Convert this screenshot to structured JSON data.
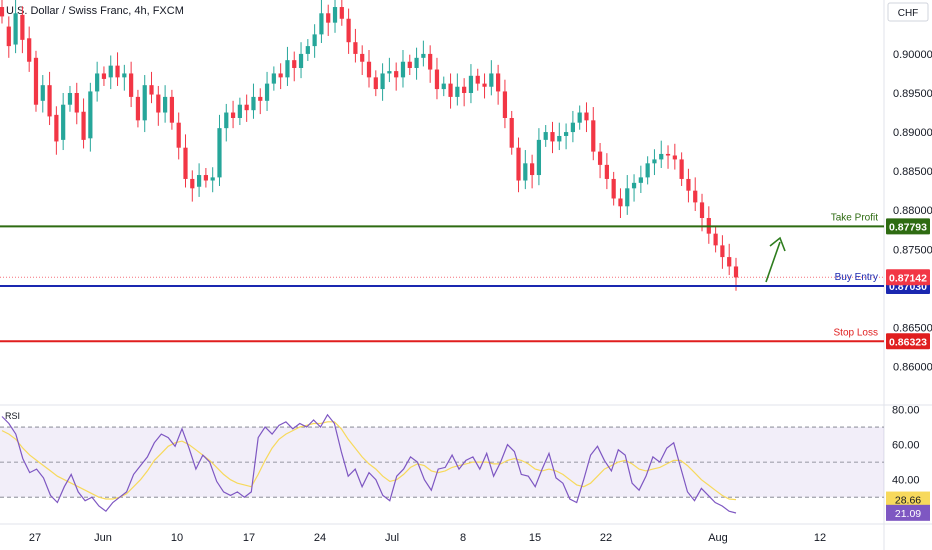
{
  "header": {
    "symbol_title": "U.S. Dollar / Swiss Franc, 4h, FXCM",
    "currency": "CHF"
  },
  "chart_data": {
    "type": "candlestick",
    "price_axis": {
      "ticks": [
        0.9,
        0.895,
        0.89,
        0.885,
        0.88,
        0.875,
        0.865,
        0.86
      ],
      "tick_labels": [
        "0.90000",
        "0.89500",
        "0.89000",
        "0.88500",
        "0.88000",
        "0.87500",
        "0.86500",
        "0.86000"
      ],
      "range": [
        0.8552,
        0.9069
      ]
    },
    "time_axis": {
      "labels": [
        "27",
        "Jun",
        "10",
        "17",
        "24",
        "Jul",
        "8",
        "15",
        "22",
        "Aug",
        "12"
      ]
    },
    "levels": [
      {
        "name": "Take Profit",
        "price": 0.87793,
        "price_label": "0.87793",
        "color": "#2e6b12"
      },
      {
        "name": "Buy Entry",
        "price": 0.8703,
        "price_label": "0.87030",
        "color": "#1a27b0"
      },
      {
        "name": "Stop Loss",
        "price": 0.86323,
        "price_label": "0.86323",
        "color": "#e01e1e"
      }
    ],
    "last_price": {
      "price": 0.87142,
      "label": "0.87142",
      "color": "#f23645"
    },
    "price_path": [
      [
        0.906,
        0.9048
      ],
      [
        0.9035,
        0.901
      ],
      [
        0.9012,
        0.9052
      ],
      [
        0.905,
        0.9018
      ],
      [
        0.902,
        0.899
      ],
      [
        0.8995,
        0.8935
      ],
      [
        0.894,
        0.896
      ],
      [
        0.896,
        0.892
      ],
      [
        0.8922,
        0.8888
      ],
      [
        0.889,
        0.8935
      ],
      [
        0.8935,
        0.895
      ],
      [
        0.895,
        0.8925
      ],
      [
        0.8926,
        0.889
      ],
      [
        0.8892,
        0.8952
      ],
      [
        0.8952,
        0.8975
      ],
      [
        0.8975,
        0.8968
      ],
      [
        0.897,
        0.8985
      ],
      [
        0.8985,
        0.897
      ],
      [
        0.897,
        0.8975
      ],
      [
        0.8975,
        0.8945
      ],
      [
        0.8945,
        0.8915
      ],
      [
        0.8915,
        0.896
      ],
      [
        0.896,
        0.8948
      ],
      [
        0.8948,
        0.8925
      ],
      [
        0.8925,
        0.8945
      ],
      [
        0.8945,
        0.8912
      ],
      [
        0.8912,
        0.888
      ],
      [
        0.888,
        0.884
      ],
      [
        0.884,
        0.8828
      ],
      [
        0.883,
        0.8845
      ],
      [
        0.8845,
        0.8838
      ],
      [
        0.8838,
        0.8842
      ],
      [
        0.8842,
        0.8905
      ],
      [
        0.8905,
        0.8925
      ],
      [
        0.8925,
        0.8918
      ],
      [
        0.8918,
        0.8935
      ],
      [
        0.8935,
        0.8928
      ],
      [
        0.8928,
        0.8945
      ],
      [
        0.8945,
        0.894
      ],
      [
        0.894,
        0.8962
      ],
      [
        0.8962,
        0.8975
      ],
      [
        0.8975,
        0.897
      ],
      [
        0.897,
        0.8992
      ],
      [
        0.8992,
        0.8982
      ],
      [
        0.8982,
        0.9
      ],
      [
        0.9,
        0.901
      ],
      [
        0.901,
        0.9025
      ],
      [
        0.9025,
        0.9052
      ],
      [
        0.9052,
        0.904
      ],
      [
        0.904,
        0.906
      ],
      [
        0.906,
        0.9045
      ],
      [
        0.9045,
        0.9015
      ],
      [
        0.9015,
        0.9
      ],
      [
        0.9,
        0.899
      ],
      [
        0.899,
        0.897
      ],
      [
        0.897,
        0.8955
      ],
      [
        0.8955,
        0.8975
      ],
      [
        0.8975,
        0.8978
      ],
      [
        0.8978,
        0.897
      ],
      [
        0.897,
        0.899
      ],
      [
        0.899,
        0.8982
      ],
      [
        0.8982,
        0.8995
      ],
      [
        0.8995,
        0.9
      ],
      [
        0.9,
        0.898
      ],
      [
        0.898,
        0.8955
      ],
      [
        0.8955,
        0.8962
      ],
      [
        0.8962,
        0.8945
      ],
      [
        0.8945,
        0.8958
      ],
      [
        0.8958,
        0.895
      ],
      [
        0.895,
        0.8972
      ],
      [
        0.8972,
        0.8962
      ],
      [
        0.8962,
        0.8958
      ],
      [
        0.8958,
        0.8975
      ],
      [
        0.8975,
        0.8952
      ],
      [
        0.8952,
        0.8918
      ],
      [
        0.8918,
        0.888
      ],
      [
        0.888,
        0.8838
      ],
      [
        0.8838,
        0.886
      ],
      [
        0.886,
        0.8845
      ],
      [
        0.8845,
        0.889
      ],
      [
        0.889,
        0.89
      ],
      [
        0.89,
        0.8888
      ],
      [
        0.8888,
        0.8895
      ],
      [
        0.8895,
        0.89
      ],
      [
        0.89,
        0.8912
      ],
      [
        0.8912,
        0.8925
      ],
      [
        0.8925,
        0.8915
      ],
      [
        0.8915,
        0.8875
      ],
      [
        0.8875,
        0.8858
      ],
      [
        0.8858,
        0.884
      ],
      [
        0.884,
        0.8815
      ],
      [
        0.8815,
        0.8805
      ],
      [
        0.8805,
        0.8828
      ],
      [
        0.8828,
        0.8835
      ],
      [
        0.8835,
        0.8842
      ],
      [
        0.8842,
        0.886
      ],
      [
        0.886,
        0.8865
      ],
      [
        0.8865,
        0.8872
      ],
      [
        0.8872,
        0.887
      ],
      [
        0.887,
        0.8865
      ],
      [
        0.8865,
        0.884
      ],
      [
        0.884,
        0.8825
      ],
      [
        0.8825,
        0.881
      ],
      [
        0.881,
        0.879
      ],
      [
        0.879,
        0.877
      ],
      [
        0.877,
        0.8755
      ],
      [
        0.8755,
        0.874
      ],
      [
        0.874,
        0.8728
      ],
      [
        0.8728,
        0.8714
      ]
    ],
    "rsi": {
      "title": "RSI",
      "axis_labels": [
        "80.00",
        "60.00",
        "40.00"
      ],
      "axis_values": [
        80,
        60,
        40
      ],
      "range": [
        17,
        82
      ],
      "band": [
        30,
        70
      ],
      "midline": 50,
      "rsi_value": 21.09,
      "rsi_label": "21.09",
      "rsi_color": "#7e57c2",
      "ma_value": 28.66,
      "ma_label": "28.66",
      "ma_color": "#f7d95c",
      "rsi_values": [
        76,
        72,
        66,
        52,
        44,
        46,
        41,
        31,
        27,
        36,
        43,
        33,
        28,
        30,
        25,
        22,
        27,
        30,
        33,
        43,
        48,
        53,
        61,
        66,
        64,
        59,
        69,
        58,
        46,
        54,
        50,
        39,
        33,
        31,
        33,
        30,
        33,
        64,
        70,
        66,
        71,
        73,
        69,
        72,
        70,
        74,
        70,
        77,
        72,
        56,
        42,
        46,
        36,
        44,
        40,
        31,
        28,
        42,
        46,
        53,
        50,
        40,
        34,
        46,
        47,
        54,
        46,
        51,
        53,
        46,
        55,
        42,
        50,
        60,
        56,
        43,
        42,
        36,
        46,
        55,
        41,
        38,
        29,
        27,
        40,
        54,
        59,
        51,
        45,
        57,
        54,
        38,
        34,
        42,
        53,
        50,
        58,
        61,
        47,
        33,
        28,
        35,
        31,
        27,
        25,
        22,
        21
      ],
      "ma_values": [
        68,
        66,
        63,
        58,
        54,
        51,
        48,
        45,
        42,
        40,
        38,
        36,
        34,
        32,
        30,
        29,
        29,
        30,
        32,
        36,
        40,
        45,
        51,
        55,
        59,
        61,
        62,
        60,
        57,
        54,
        51,
        47,
        43,
        40,
        38,
        37,
        36,
        43,
        51,
        58,
        63,
        66,
        68,
        70,
        71,
        72,
        72,
        73,
        73,
        69,
        63,
        58,
        53,
        49,
        46,
        42,
        39,
        40,
        43,
        47,
        49,
        48,
        45,
        44,
        45,
        47,
        48,
        49,
        50,
        50,
        50,
        49,
        49,
        51,
        52,
        51,
        49,
        46,
        45,
        46,
        45,
        43,
        40,
        37,
        36,
        38,
        42,
        46,
        48,
        50,
        51,
        49,
        46,
        45,
        46,
        47,
        49,
        51,
        51,
        48,
        44,
        40,
        37,
        34,
        31,
        29,
        28.66
      ]
    },
    "annotations": [
      {
        "type": "arrow",
        "direction": "up",
        "color": "#2e7d1e"
      }
    ],
    "colors": {
      "up": "#26a69a",
      "down": "#f23645"
    }
  }
}
